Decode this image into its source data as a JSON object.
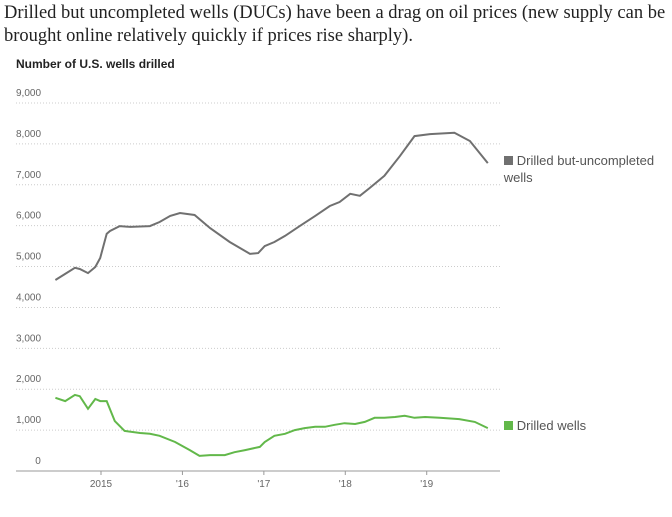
{
  "chart_data": {
    "type": "line",
    "title": "Drilled but uncompleted wells (DUCs) have been a drag on oil prices (new supply can be brought online relatively quickly if prices rise sharply).",
    "subtitle": "Number of U.S. wells drilled",
    "xlim": [
      2014.3,
      2019.9
    ],
    "xticks": [
      {
        "value": 2015,
        "label": "2015"
      },
      {
        "value": 2016,
        "label": "'16"
      },
      {
        "value": 2017,
        "label": "'17"
      },
      {
        "value": 2018,
        "label": "'18"
      },
      {
        "value": 2019,
        "label": "'19"
      }
    ],
    "ylim": [
      0,
      9000
    ],
    "yticks": [
      0,
      {
        "value": 1000,
        "label": "1,000"
      },
      {
        "value": 2000,
        "label": "2,000"
      },
      {
        "value": 3000,
        "label": "3,000"
      },
      {
        "value": 4000,
        "label": "4,000"
      },
      {
        "value": 5000,
        "label": "5,000"
      },
      {
        "value": 6000,
        "label": "6,000"
      },
      {
        "value": 7000,
        "label": "7,000"
      },
      {
        "value": 8000,
        "label": "8,000"
      },
      {
        "value": 9000,
        "label": "9,000"
      }
    ],
    "grid": true,
    "series": [
      {
        "name": "Drilled but-uncompleted wells",
        "color": "#707070",
        "x": [
          2014.44,
          2014.56,
          2014.68,
          2014.74,
          2014.84,
          2014.93,
          2014.99,
          2015.07,
          2015.11,
          2015.23,
          2015.36,
          2015.6,
          2015.72,
          2015.85,
          2015.97,
          2016.15,
          2016.34,
          2016.58,
          2016.83,
          2016.93,
          2017.01,
          2017.13,
          2017.26,
          2017.44,
          2017.63,
          2017.81,
          2017.93,
          2018.06,
          2018.18,
          2018.3,
          2018.48,
          2018.67,
          2018.85,
          2019.04,
          2019.34,
          2019.53,
          2019.75
        ],
        "values": [
          4670,
          4820,
          4970,
          4940,
          4840,
          4990,
          5210,
          5800,
          5870,
          5990,
          5970,
          5990,
          6090,
          6240,
          6310,
          6260,
          5940,
          5600,
          5310,
          5330,
          5500,
          5600,
          5750,
          5990,
          6240,
          6480,
          6580,
          6780,
          6730,
          6920,
          7220,
          7700,
          8190,
          8240,
          8270,
          8070,
          7530
        ]
      },
      {
        "name": "Drilled wells",
        "color": "#62b84a",
        "x": [
          2014.44,
          2014.56,
          2014.68,
          2014.74,
          2014.84,
          2014.93,
          2014.99,
          2015.07,
          2015.17,
          2015.29,
          2015.48,
          2015.6,
          2015.72,
          2015.91,
          2016.09,
          2016.21,
          2016.34,
          2016.52,
          2016.64,
          2016.77,
          2016.95,
          2017.01,
          2017.13,
          2017.26,
          2017.38,
          2017.5,
          2017.63,
          2017.75,
          2017.87,
          2017.99,
          2018.12,
          2018.24,
          2018.36,
          2018.48,
          2018.61,
          2018.73,
          2018.85,
          2018.98,
          2019.16,
          2019.4,
          2019.59,
          2019.75
        ],
        "values": [
          1790,
          1710,
          1860,
          1830,
          1520,
          1760,
          1710,
          1710,
          1220,
          980,
          930,
          910,
          860,
          710,
          510,
          370,
          390,
          390,
          460,
          510,
          590,
          710,
          860,
          910,
          1000,
          1050,
          1080,
          1080,
          1130,
          1170,
          1150,
          1200,
          1300,
          1300,
          1320,
          1350,
          1300,
          1320,
          1300,
          1270,
          1200,
          1050
        ]
      }
    ]
  }
}
